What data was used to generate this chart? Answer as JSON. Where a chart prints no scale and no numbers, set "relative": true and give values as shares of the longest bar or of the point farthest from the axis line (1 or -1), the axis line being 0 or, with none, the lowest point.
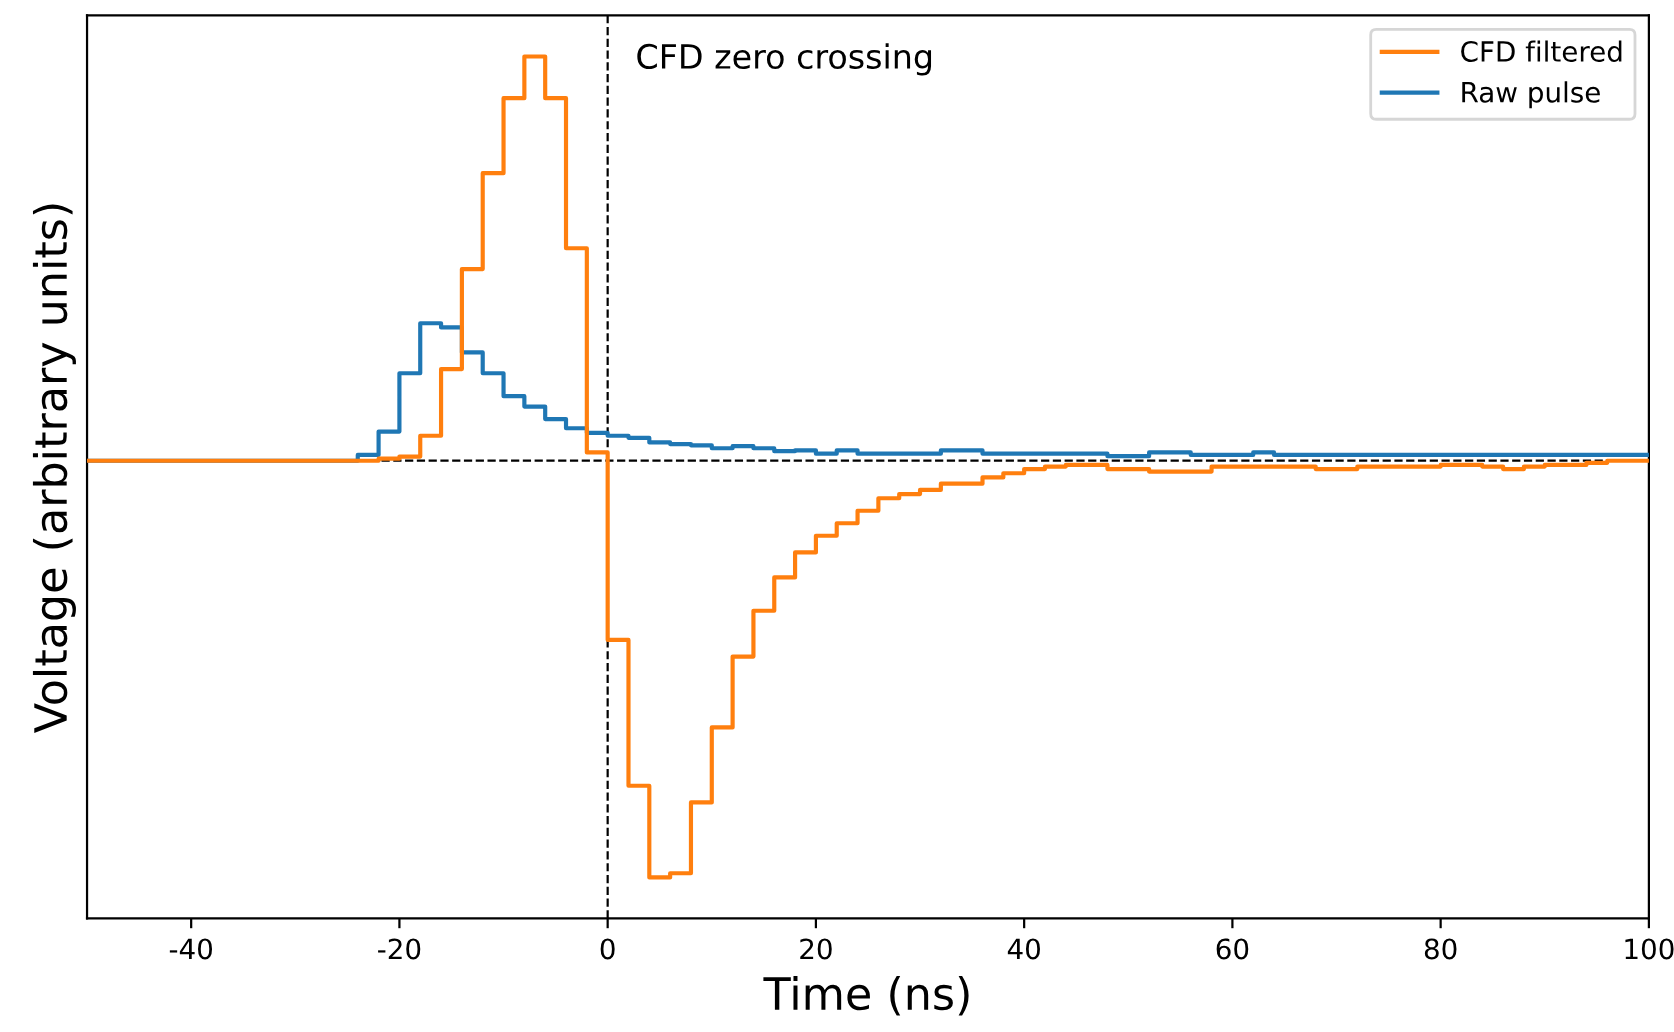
{
  "chart_data": {
    "type": "step",
    "relative": true,
    "xlabel": "Time (ns)",
    "ylabel": "Voltage (arbitrary units)",
    "xlim": [
      -50,
      100
    ],
    "xticks": [
      -40,
      -20,
      0,
      20,
      40,
      60,
      80,
      100
    ],
    "grid": false,
    "legend": "top right",
    "line_style": "solid",
    "x": [
      -50,
      -24,
      -22,
      -20,
      -18,
      -16,
      -14,
      -12,
      -10,
      -8,
      -6,
      -4,
      -2,
      0,
      2,
      4,
      6,
      8,
      10,
      12,
      14,
      16,
      18,
      20,
      22,
      24,
      26,
      28,
      30,
      32,
      34,
      36,
      38,
      40,
      42,
      44,
      46,
      48,
      50,
      52,
      54,
      56,
      58,
      60,
      62,
      64,
      66,
      68,
      70,
      72,
      74,
      76,
      78,
      80,
      82,
      84,
      86,
      88,
      90,
      92,
      94,
      96,
      98,
      100
    ],
    "series": [
      {
        "name": "CFD filtered",
        "color": "#ff7f0e",
        "values": [
          0,
          0,
          0.005,
          0.01,
          0.06,
          0.22,
          0.46,
          0.69,
          0.87,
          0.97,
          0.87,
          0.51,
          0.02,
          -0.43,
          -0.78,
          -1,
          -0.99,
          -0.82,
          -0.64,
          -0.47,
          -0.36,
          -0.28,
          -0.22,
          -0.18,
          -0.15,
          -0.12,
          -0.09,
          -0.08,
          -0.07,
          -0.055,
          -0.055,
          -0.04,
          -0.03,
          -0.02,
          -0.014,
          -0.01,
          -0.01,
          -0.02,
          -0.02,
          -0.026,
          -0.026,
          -0.026,
          -0.014,
          -0.014,
          -0.014,
          -0.014,
          -0.014,
          -0.02,
          -0.02,
          -0.014,
          -0.014,
          -0.014,
          -0.014,
          -0.01,
          -0.01,
          -0.014,
          -0.02,
          -0.014,
          -0.01,
          -0.01,
          -0.005,
          0,
          0,
          0
        ]
      },
      {
        "name": "Raw pulse",
        "color": "#1f77b4",
        "values": [
          0,
          0.014,
          0.07,
          0.21,
          0.33,
          0.32,
          0.26,
          0.21,
          0.155,
          0.13,
          0.1,
          0.078,
          0.067,
          0.06,
          0.055,
          0.044,
          0.04,
          0.037,
          0.03,
          0.035,
          0.03,
          0.023,
          0.025,
          0.017,
          0.025,
          0.017,
          0.017,
          0.017,
          0.017,
          0.025,
          0.025,
          0.017,
          0.017,
          0.017,
          0.017,
          0.017,
          0.017,
          0.011,
          0.011,
          0.02,
          0.02,
          0.014,
          0.014,
          0.014,
          0.02,
          0.014,
          0.014,
          0.014,
          0.014,
          0.014,
          0.014,
          0.014,
          0.014,
          0.014,
          0.014,
          0.014,
          0.014,
          0.014,
          0.014,
          0.014,
          0.014,
          0.014,
          0.014,
          0.014
        ]
      }
    ],
    "ref_lines": [
      {
        "axis": "x",
        "value": 0,
        "label": "CFD zero crossing",
        "color": "#000000",
        "line_style": "dashed"
      },
      {
        "axis": "y",
        "value": 0,
        "color": "#000000",
        "line_style": "dashed"
      }
    ]
  }
}
